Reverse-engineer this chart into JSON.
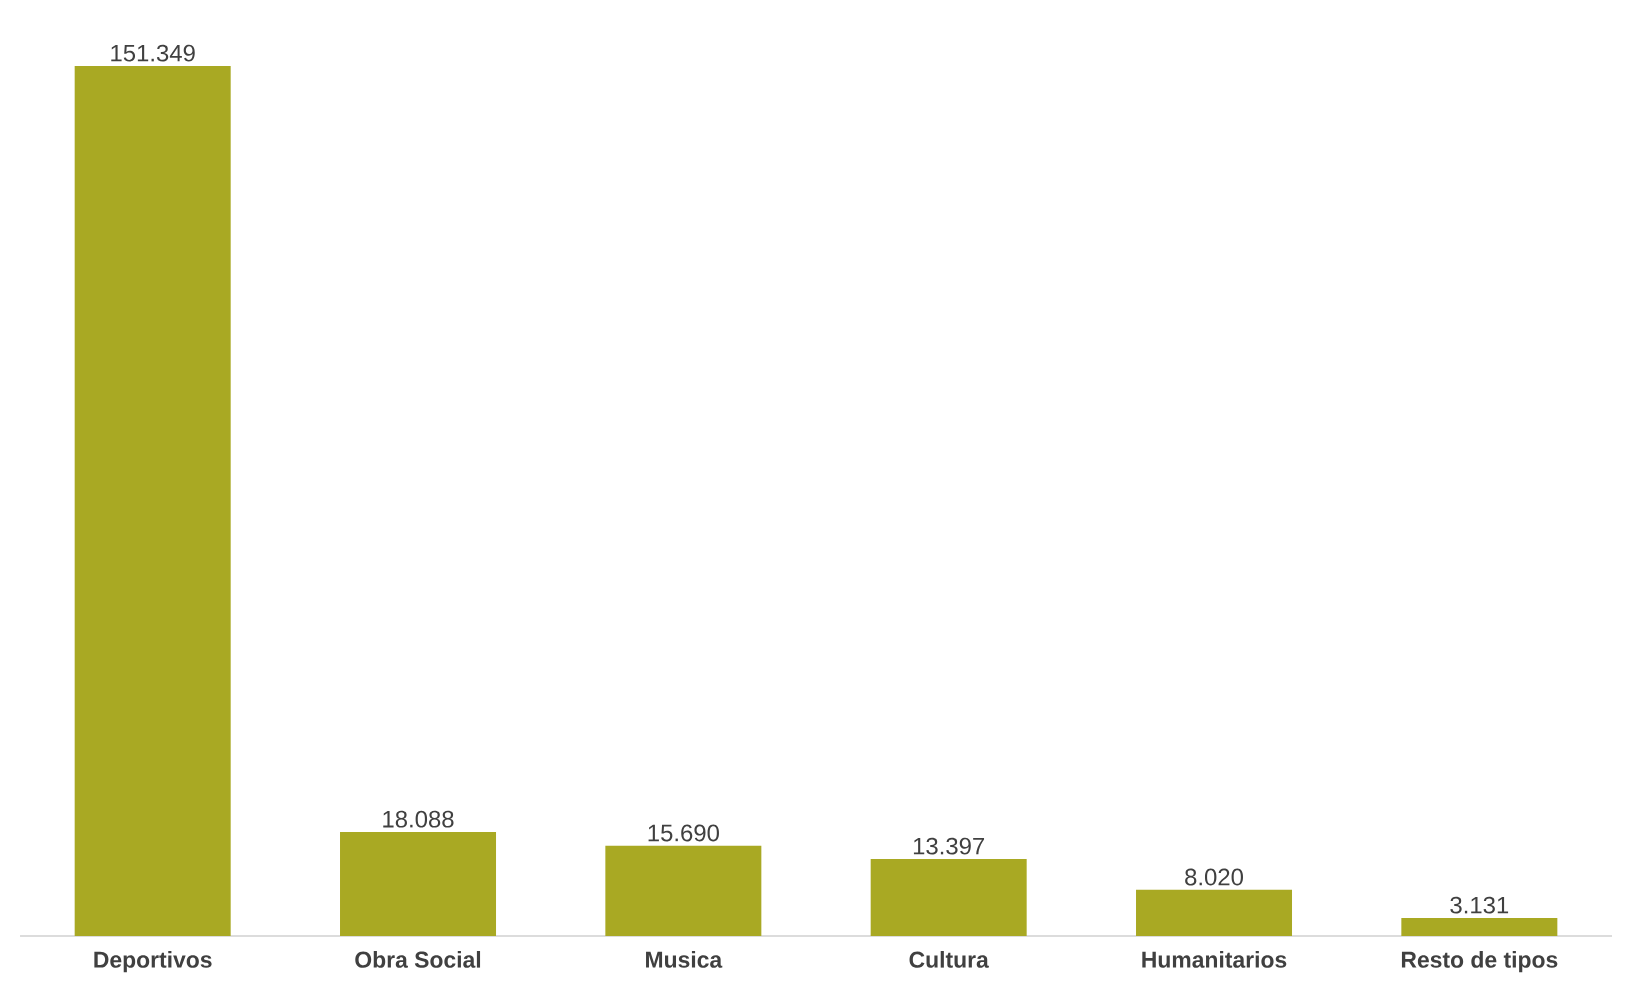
{
  "chart_data": {
    "type": "bar",
    "categories": [
      "Deportivos",
      "Obra Social",
      "Musica",
      "Cultura",
      "Humanitarios",
      "Resto de tipos"
    ],
    "values": [
      151349,
      18088,
      15690,
      13397,
      8020,
      3131
    ],
    "value_labels": [
      "151.349",
      "18.088",
      "15.690",
      "13.397",
      "8.020",
      "3.131"
    ],
    "color": "#a9a923"
  }
}
